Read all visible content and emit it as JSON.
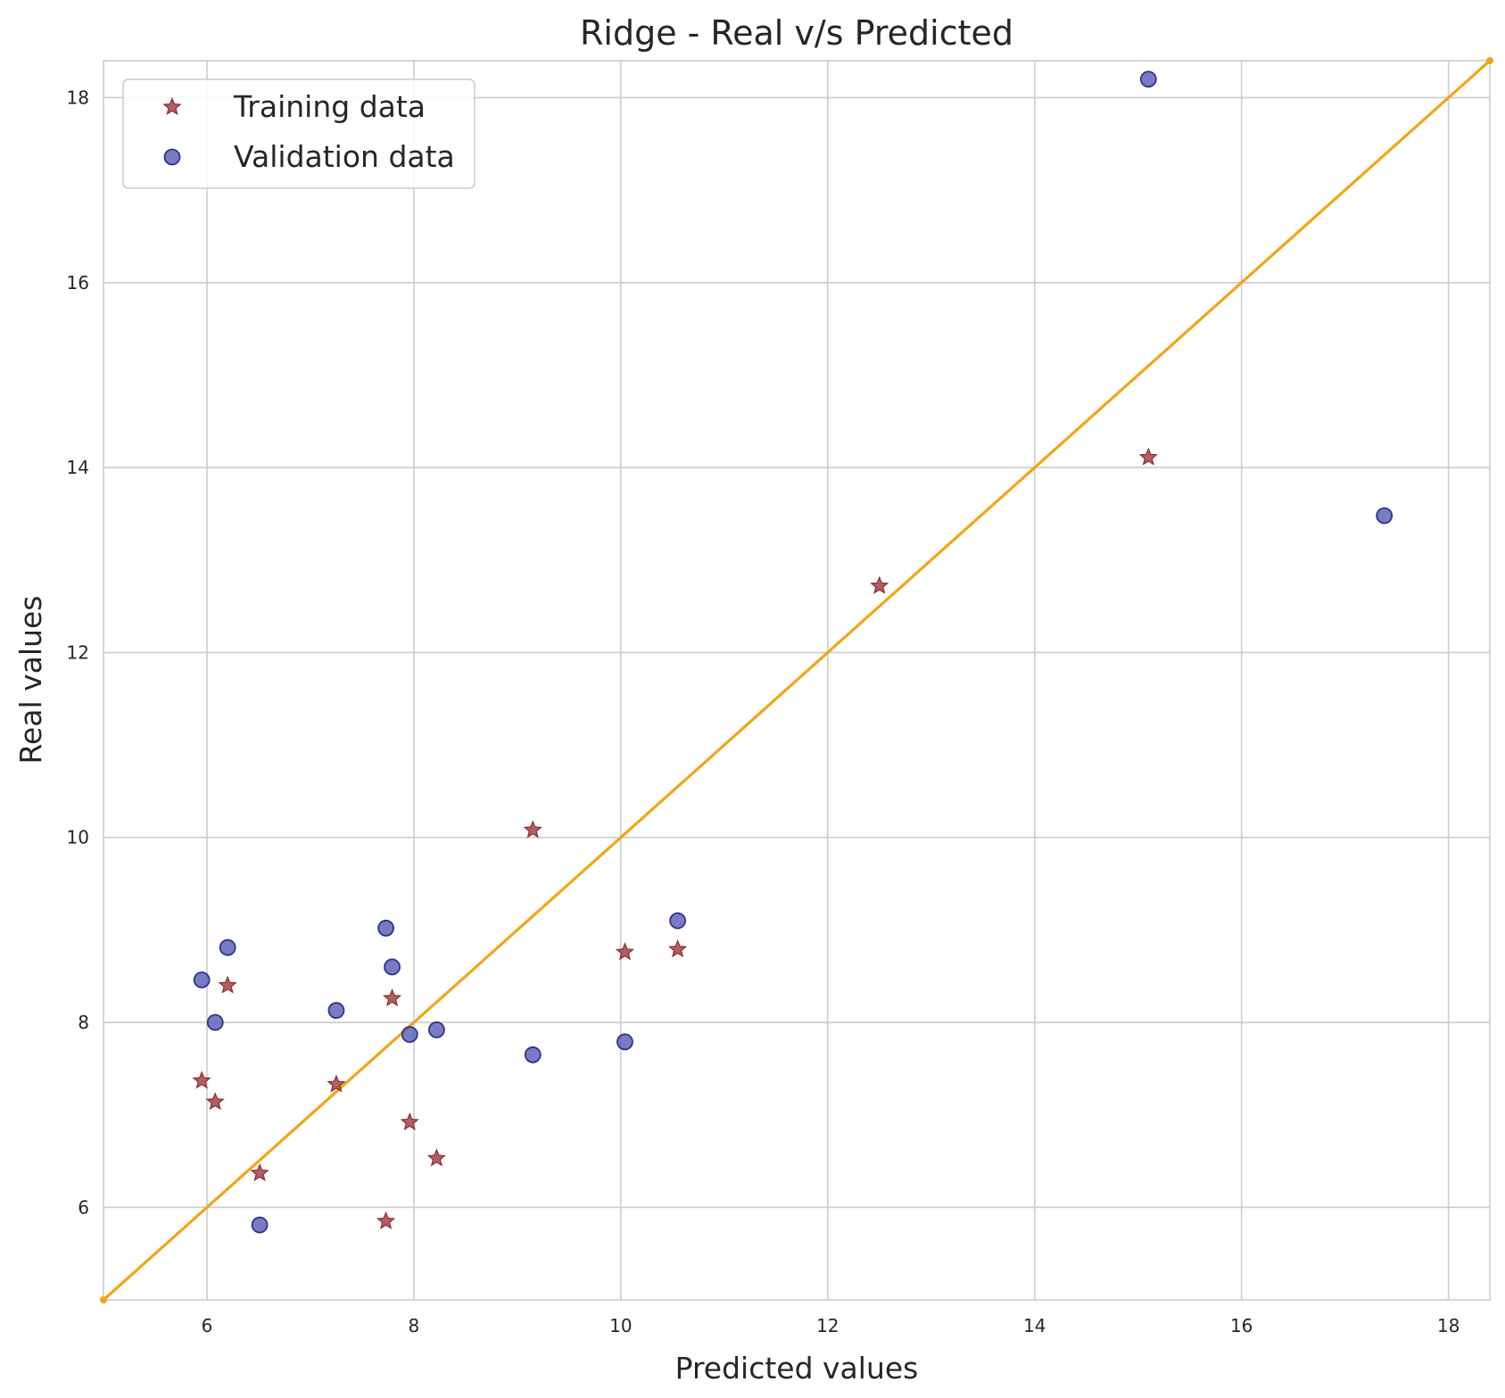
{
  "chart_data": {
    "type": "scatter",
    "title": "Ridge - Real v/s Predicted",
    "xlabel": "Predicted values",
    "ylabel": "Real values",
    "xlim": [
      5.0,
      18.4
    ],
    "ylim": [
      5.0,
      18.4
    ],
    "xticks": [
      6,
      8,
      10,
      12,
      14,
      16,
      18
    ],
    "yticks": [
      6,
      8,
      10,
      12,
      14,
      16,
      18
    ],
    "grid": true,
    "legend_position": "top-left",
    "colors": {
      "training": "#a0373a",
      "training_edge": "#8b2a2e",
      "validation": "#4b50b0",
      "validation_edge": "#2e3388",
      "reference_line": "#f2a516"
    },
    "series": [
      {
        "name": "Training data",
        "marker": "star",
        "points": [
          [
            5.95,
            7.37
          ],
          [
            6.08,
            7.14
          ],
          [
            6.2,
            8.4
          ],
          [
            6.51,
            6.37
          ],
          [
            7.25,
            7.33
          ],
          [
            7.73,
            5.85
          ],
          [
            7.79,
            8.26
          ],
          [
            7.96,
            6.92
          ],
          [
            8.22,
            6.53
          ],
          [
            9.15,
            10.08
          ],
          [
            10.04,
            8.76
          ],
          [
            10.55,
            8.79
          ],
          [
            12.5,
            12.72
          ],
          [
            15.1,
            14.11
          ]
        ]
      },
      {
        "name": "Validation data",
        "marker": "circle",
        "points": [
          [
            5.95,
            8.46
          ],
          [
            6.08,
            8.0
          ],
          [
            6.2,
            8.81
          ],
          [
            6.51,
            5.81
          ],
          [
            7.25,
            8.13
          ],
          [
            7.73,
            9.02
          ],
          [
            7.79,
            8.6
          ],
          [
            7.96,
            7.87
          ],
          [
            8.22,
            7.92
          ],
          [
            9.15,
            7.65
          ],
          [
            10.04,
            7.79
          ],
          [
            10.55,
            9.1
          ],
          [
            15.1,
            18.2
          ],
          [
            17.38,
            13.48
          ]
        ]
      }
    ],
    "reference_line": {
      "name": "y = x",
      "from": [
        5.0,
        5.0
      ],
      "to": [
        18.4,
        18.4
      ]
    }
  }
}
